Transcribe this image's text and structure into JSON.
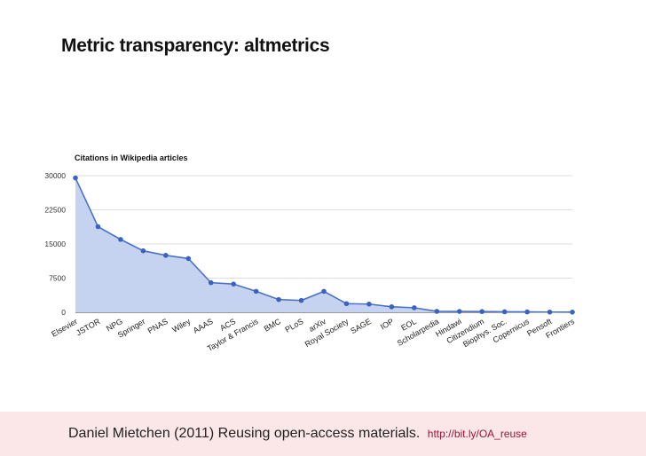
{
  "slide": {
    "title": "Metric transparency: altmetrics"
  },
  "citation": {
    "text": "Daniel Mietchen (2011) Reusing open-access materials.",
    "link": "http://bit.ly/OA_reuse"
  },
  "chart_data": {
    "type": "area",
    "title": "Citations in Wikipedia articles",
    "xlabel": "",
    "ylabel": "",
    "ylim": [
      0,
      30000
    ],
    "yticks": [
      0,
      7500,
      15000,
      22500,
      30000
    ],
    "grid": true,
    "legend": "none",
    "categories": [
      "Elsevier",
      "JSTOR",
      "NPG",
      "Springer",
      "PNAS",
      "Wiley",
      "AAAS",
      "ACS",
      "Taylor & Francis",
      "BMC",
      "PLoS",
      "arXiv",
      "Royal Society",
      "SAGE",
      "IOP",
      "EOL",
      "Scholarpedia",
      "Hindawi",
      "Citizendium",
      "Biophys. Soc.",
      "Copernicus",
      "Pensoft",
      "Frontiers"
    ],
    "series": [
      {
        "name": "Citations",
        "values": [
          29500,
          18800,
          16000,
          13500,
          12500,
          11800,
          6500,
          6200,
          4600,
          2800,
          2600,
          4600,
          1900,
          1800,
          1200,
          1000,
          200,
          180,
          150,
          100,
          80,
          50,
          40
        ]
      }
    ],
    "colors": {
      "fill": "#c5d3f0",
      "line": "#4a72c6",
      "point": "#3a63c0",
      "grid": "#dddddd",
      "axis": "#333333"
    }
  }
}
